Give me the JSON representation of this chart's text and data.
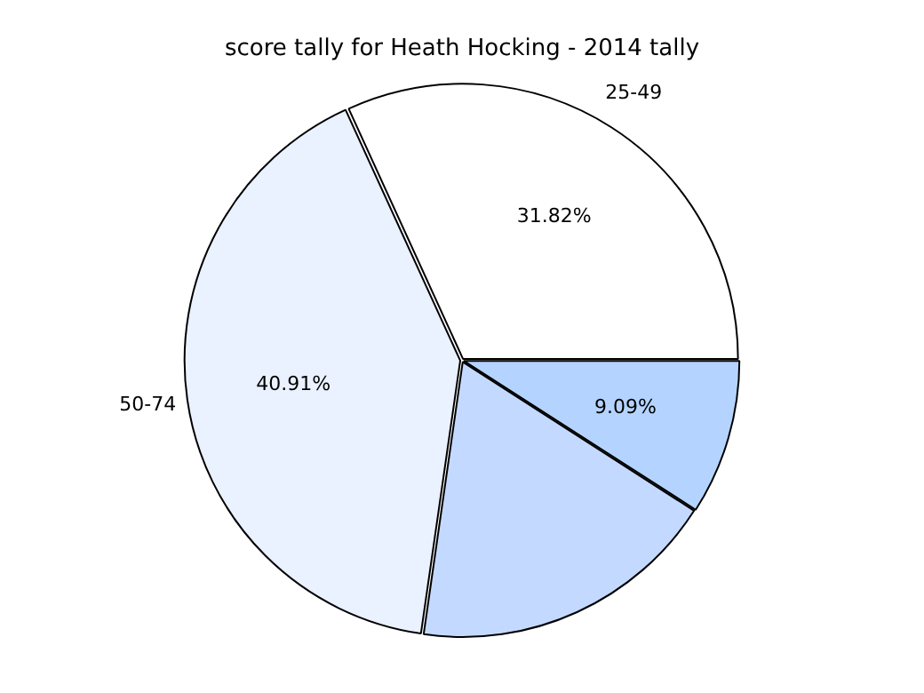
{
  "chart_data": {
    "type": "pie",
    "title": "score tally for Heath Hocking - 2014 tally",
    "categories": [
      null,
      null,
      "50-74",
      "25-49"
    ],
    "values": [
      9.09,
      18.18,
      40.91,
      31.82
    ],
    "colors": [
      "#b4d4ff",
      "#c4d9ff",
      "#eaf1ff",
      "#ffffff"
    ],
    "value_labels": [
      "9.09%",
      null,
      "40.91%",
      "31.82%"
    ],
    "legend": false
  }
}
